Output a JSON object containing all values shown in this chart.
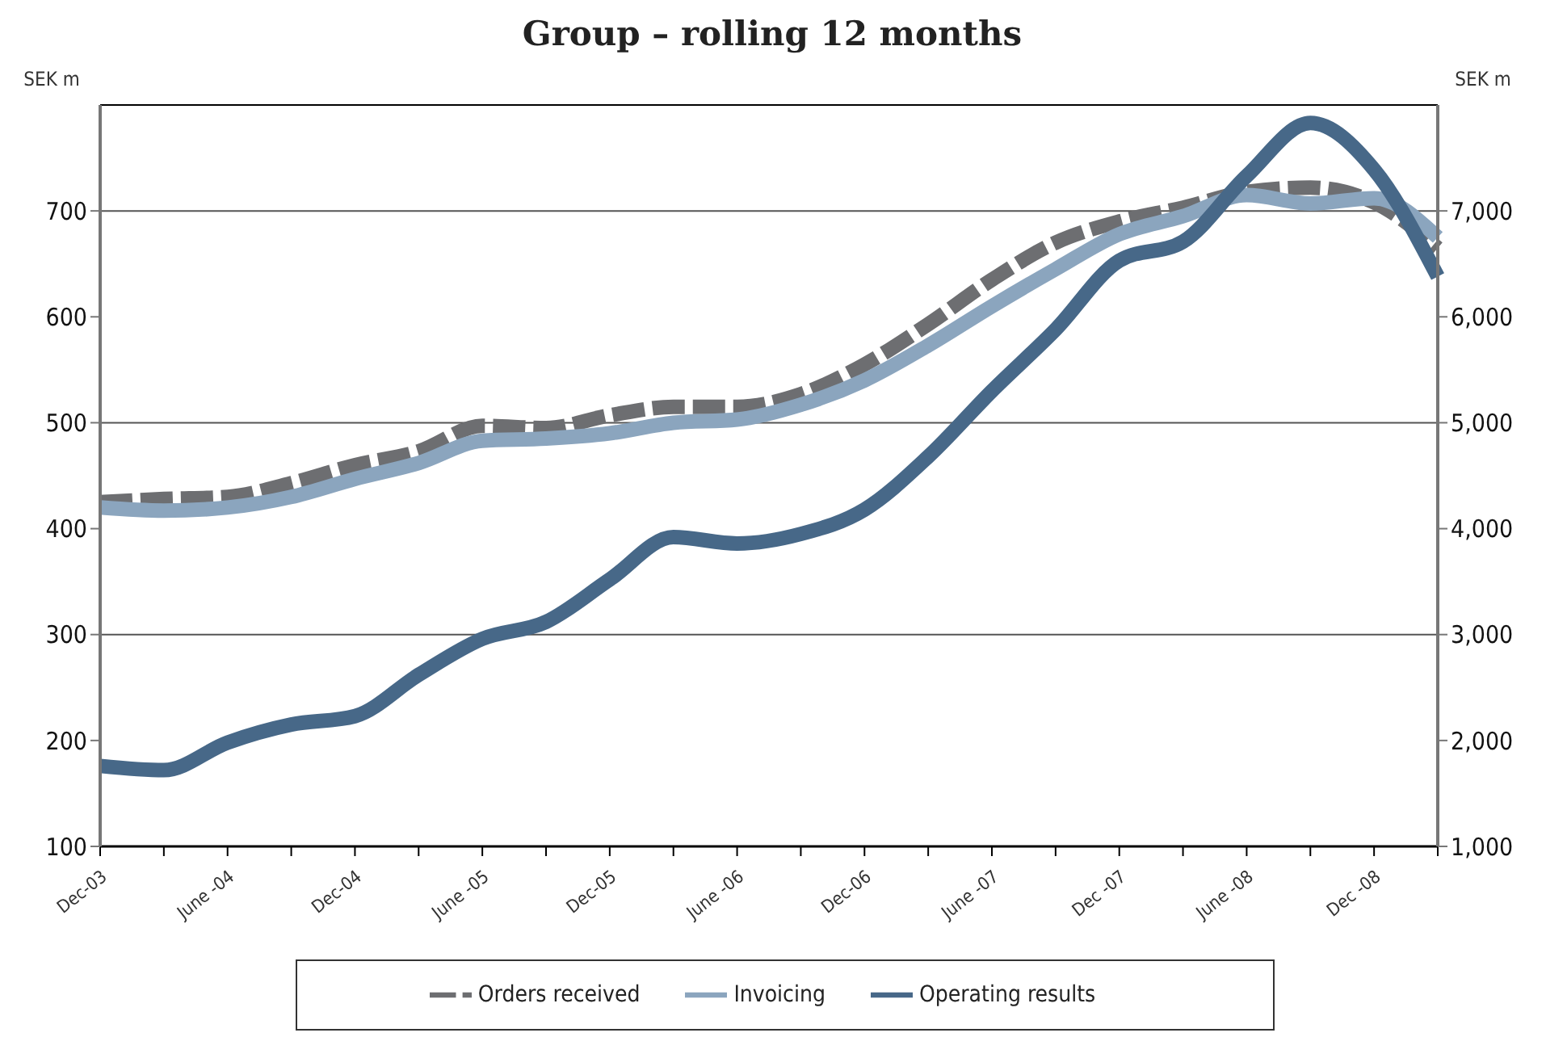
{
  "chart_data": {
    "type": "line",
    "title": "Group – rolling 12 months",
    "ylabel": "SEK m",
    "y2label": "SEK m",
    "categories": [
      "Dec-03",
      null,
      "June -04",
      null,
      "Dec-04",
      null,
      "June -05",
      null,
      "Dec-05",
      null,
      "June -06",
      null,
      "Dec-06",
      null,
      "June -07",
      null,
      "Dec -07",
      null,
      "June -08",
      null,
      "Dec -08",
      null
    ],
    "series": [
      {
        "name": "Orders received",
        "color": "#6d6e71",
        "axis": "y2",
        "line_style": "dashed",
        "values": [
          4250,
          4280,
          4300,
          4430,
          4600,
          4730,
          4970,
          4950,
          5070,
          5150,
          5150,
          5270,
          5550,
          5930,
          6350,
          6700,
          6900,
          7030,
          7180,
          7220,
          7080,
          6650
        ]
      },
      {
        "name": "Invoicing",
        "color": "#8ba5be",
        "axis": "y2",
        "line_style": "solid",
        "values": [
          4200,
          4170,
          4200,
          4300,
          4470,
          4620,
          4830,
          4850,
          4900,
          5000,
          5030,
          5170,
          5400,
          5730,
          6100,
          6450,
          6780,
          6950,
          7150,
          7070,
          7120,
          6750
        ]
      },
      {
        "name": "Operating results",
        "color": "#476888",
        "axis": "y",
        "line_style": "solid",
        "values": [
          176,
          172,
          198,
          215,
          223,
          262,
          296,
          312,
          352,
          392,
          386,
          395,
          418,
          468,
          530,
          588,
          653,
          671,
          733,
          783,
          739,
          638
        ]
      }
    ],
    "ylim": [
      100,
      800
    ],
    "yticks": [
      100,
      200,
      300,
      400,
      500,
      600,
      700
    ],
    "y2lim": [
      1000,
      8000
    ],
    "y2ticks": [
      {
        "value": 1000,
        "label": "1,000"
      },
      {
        "value": 2000,
        "label": "2,000"
      },
      {
        "value": 3000,
        "label": "3,000"
      },
      {
        "value": 4000,
        "label": "4,000"
      },
      {
        "value": 5000,
        "label": "5,000"
      },
      {
        "value": 6000,
        "label": "6,000"
      },
      {
        "value": 7000,
        "label": "7,000"
      }
    ],
    "ref_lines": [
      {
        "axis": "y",
        "value": 300,
        "color": "#555555"
      },
      {
        "axis": "y",
        "value": 500,
        "color": "#555555"
      },
      {
        "axis": "y",
        "value": 700,
        "color": "#555555"
      }
    ],
    "grid": false,
    "legend": "bottom",
    "marker": "none"
  }
}
